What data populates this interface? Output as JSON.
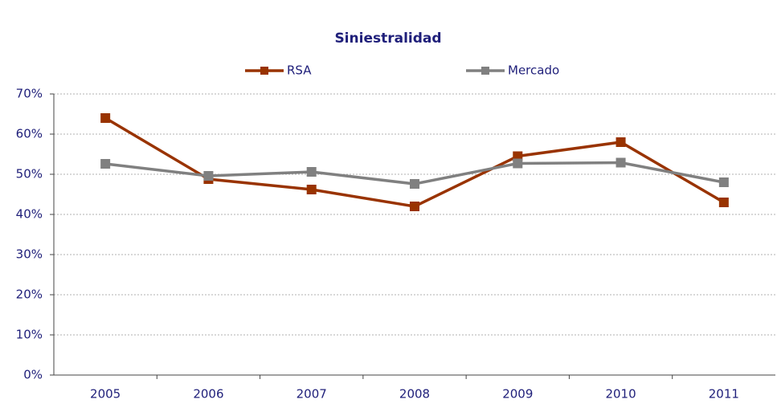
{
  "chart_data": {
    "type": "line",
    "title": "Siniestralidad",
    "categories": [
      "2005",
      "2006",
      "2007",
      "2008",
      "2009",
      "2010",
      "2011"
    ],
    "series": [
      {
        "name": "RSA",
        "color": "#993300",
        "values": [
          64,
          48.8,
          46.2,
          42,
          54.5,
          58,
          43
        ]
      },
      {
        "name": "Mercado",
        "color": "#808080",
        "values": [
          52.6,
          49.6,
          50.6,
          47.6,
          52.7,
          52.9,
          48
        ]
      }
    ],
    "ylim": [
      0,
      70
    ],
    "yticks": [
      {
        "value": 0,
        "label": "0%"
      },
      {
        "value": 10,
        "label": "10%"
      },
      {
        "value": 20,
        "label": "20%"
      },
      {
        "value": 30,
        "label": "30%"
      },
      {
        "value": 40,
        "label": "40%"
      },
      {
        "value": 50,
        "label": "50%"
      },
      {
        "value": 60,
        "label": "60%"
      },
      {
        "value": 70,
        "label": "70%"
      }
    ],
    "grid": true,
    "legend": "top"
  }
}
